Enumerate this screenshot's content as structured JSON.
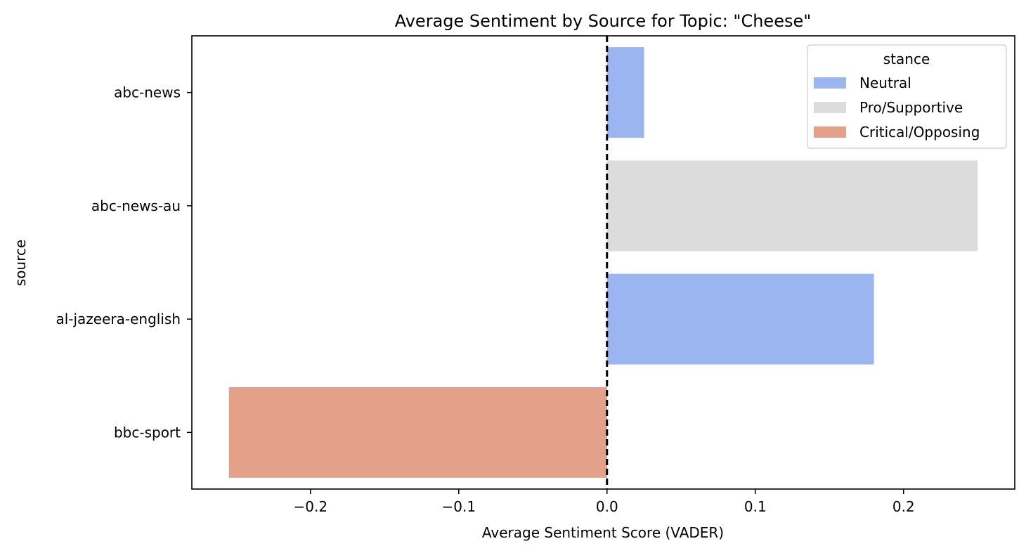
{
  "chart_data": {
    "type": "bar",
    "orientation": "horizontal",
    "title": "Average Sentiment by Source for Topic: \"Cheese\"",
    "xlabel": "Average Sentiment Score (VADER)",
    "ylabel": "source",
    "xlim": [
      -0.28,
      0.275
    ],
    "xticks": [
      -0.2,
      -0.1,
      0.0,
      0.1,
      0.2
    ],
    "xtick_labels": [
      "−0.2",
      "−0.1",
      "0.0",
      "0.1",
      "0.2"
    ],
    "categories": [
      "abc-news",
      "abc-news-au",
      "al-jazeera-english",
      "bbc-sport"
    ],
    "values": [
      0.025,
      0.25,
      0.18,
      -0.255
    ],
    "stances": [
      "Neutral",
      "Pro/Supportive",
      "Neutral",
      "Critical/Opposing"
    ],
    "reference_line": {
      "x": 0.0,
      "style": "dashed",
      "color": "#000000"
    },
    "grid": false,
    "legend": {
      "title": "stance",
      "placement": "top-right",
      "entries": [
        {
          "label": "Neutral",
          "color": "#9bb5f0"
        },
        {
          "label": "Pro/Supportive",
          "color": "#dcdcdc"
        },
        {
          "label": "Critical/Opposing",
          "color": "#e4a18a"
        }
      ]
    }
  }
}
